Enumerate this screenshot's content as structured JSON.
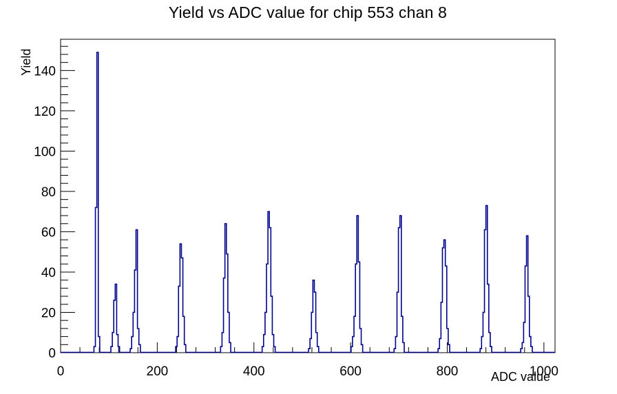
{
  "window": {
    "title": "Yield vs ADC value for chip 553 chan 8"
  },
  "chart_data": {
    "type": "histogram",
    "title": "Yield vs ADC value for chip 553 chan 8",
    "xlabel": "ADC value",
    "ylabel": "Yield",
    "xlim": [
      0,
      1023
    ],
    "ylim": [
      0,
      155.5
    ],
    "xticks": [
      0,
      200,
      400,
      600,
      800,
      1000
    ],
    "yticks": [
      0,
      20,
      40,
      60,
      80,
      100,
      120,
      140
    ],
    "x_minor_step": 40,
    "y_minor_step": 4,
    "grid": "off",
    "legend": "none",
    "line_color": "#00008b",
    "axis_color": "#000000",
    "bin_width": 3,
    "peaks": [
      {
        "start": 69,
        "bins": [
          3,
          72,
          149,
          8
        ]
      },
      {
        "start": 104,
        "bins": [
          3,
          10,
          26,
          34,
          9,
          3
        ]
      },
      {
        "start": 144,
        "bins": [
          2,
          8,
          20,
          41,
          61,
          12,
          4
        ]
      },
      {
        "start": 238,
        "bins": [
          3,
          8,
          33,
          54,
          47,
          18,
          4
        ]
      },
      {
        "start": 331,
        "bins": [
          3,
          10,
          37,
          64,
          49,
          20,
          5
        ]
      },
      {
        "start": 417,
        "bins": [
          3,
          9,
          20,
          44,
          70,
          62,
          28,
          9,
          3
        ]
      },
      {
        "start": 513,
        "bins": [
          2,
          7,
          20,
          36,
          30,
          10,
          3
        ]
      },
      {
        "start": 601,
        "bins": [
          3,
          8,
          18,
          44,
          68,
          45,
          12,
          4
        ]
      },
      {
        "start": 690,
        "bins": [
          2,
          8,
          30,
          62,
          68,
          18,
          5
        ]
      },
      {
        "start": 781,
        "bins": [
          2,
          7,
          25,
          52,
          56,
          43,
          12,
          4
        ]
      },
      {
        "start": 868,
        "bins": [
          2,
          8,
          20,
          61,
          73,
          34,
          10,
          3
        ]
      },
      {
        "start": 952,
        "bins": [
          2,
          5,
          15,
          43,
          58,
          28,
          8,
          3
        ]
      }
    ],
    "peak_maxima": [
      {
        "adc": 77,
        "yield": 149
      },
      {
        "adc": 114,
        "yield": 34
      },
      {
        "adc": 157,
        "yield": 61
      },
      {
        "adc": 248,
        "yield": 54
      },
      {
        "adc": 342,
        "yield": 64
      },
      {
        "adc": 430,
        "yield": 70
      },
      {
        "adc": 524,
        "yield": 36
      },
      {
        "adc": 615,
        "yield": 68
      },
      {
        "adc": 704,
        "yield": 68
      },
      {
        "adc": 795,
        "yield": 56
      },
      {
        "adc": 882,
        "yield": 73
      },
      {
        "adc": 966,
        "yield": 58
      }
    ]
  }
}
